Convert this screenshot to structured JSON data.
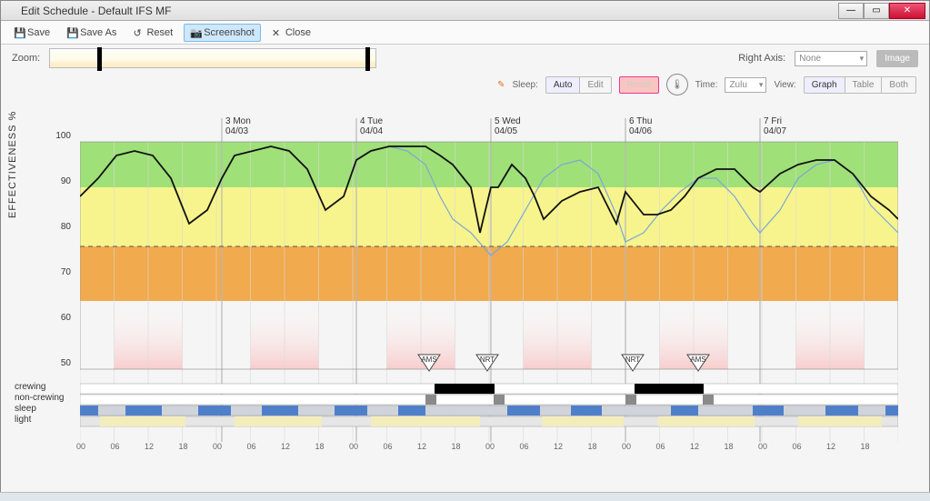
{
  "window": {
    "title": "Edit Schedule - Default IFS MF"
  },
  "toolbar": {
    "save": "Save",
    "saveas": "Save As",
    "reset": "Reset",
    "screenshot": "Screenshot",
    "close": "Close"
  },
  "controls": {
    "zoom_label": "Zoom:",
    "right_axis_label": "Right Axis:",
    "right_axis_value": "None",
    "image_btn": "Image",
    "sleep_label": "Sleep:",
    "auto": "Auto",
    "edit": "Edit",
    "reset": "Reset",
    "time_label": "Time:",
    "time_value": "Zulu",
    "view_label": "View:",
    "view_graph": "Graph",
    "view_table": "Table",
    "view_both": "Both"
  },
  "chart": {
    "y_label": "EFFECTIVENESS %",
    "y_ticks": [
      50,
      60,
      70,
      80,
      90,
      100
    ],
    "y_range": [
      50,
      100
    ],
    "bands": [
      {
        "from": 90,
        "to": 100,
        "color": "#8fdc63",
        "alpha": 0.85
      },
      {
        "from": 77,
        "to": 90,
        "color": "#f7f37a",
        "alpha": 0.85
      },
      {
        "from": 65,
        "to": 77,
        "color": "#f1a23c",
        "alpha": 0.9
      }
    ],
    "dash_line_y": 77,
    "low_fade_color": "#f8c8c8",
    "dates": [
      {
        "x": 156,
        "d1": "3 Mon",
        "d2": "04/03"
      },
      {
        "x": 304,
        "d1": "4 Tue",
        "d2": "04/04"
      },
      {
        "x": 452,
        "d1": "5 Wed",
        "d2": "04/05"
      },
      {
        "x": 600,
        "d1": "6 Thu",
        "d2": "04/06"
      },
      {
        "x": 748,
        "d1": "7 Fri",
        "d2": "04/07"
      }
    ],
    "airport_markers": [
      {
        "x": 384,
        "code": "AMS"
      },
      {
        "x": 448,
        "code": "NRT"
      },
      {
        "x": 608,
        "code": "NRT"
      },
      {
        "x": 680,
        "code": "AMS"
      }
    ],
    "x_hours": [
      "00",
      "06",
      "12",
      "18",
      "00",
      "06",
      "12",
      "18",
      "00",
      "06",
      "12",
      "18",
      "00",
      "06",
      "12",
      "18",
      "00",
      "06",
      "12",
      "18",
      "00",
      "06",
      "12",
      "18"
    ],
    "x_hour_spacing": 37.5,
    "row_labels": [
      "crewing",
      "non-crewing",
      "sleep",
      "light"
    ],
    "series": {
      "baseline": {
        "color": "#7aa7d6",
        "width": 1.2,
        "points": [
          [
            0,
            88
          ],
          [
            20,
            92
          ],
          [
            40,
            97
          ],
          [
            60,
            98
          ],
          [
            80,
            97
          ],
          [
            100,
            92
          ],
          [
            120,
            82
          ],
          [
            140,
            85
          ],
          [
            156,
            92
          ],
          [
            170,
            97
          ],
          [
            190,
            98
          ],
          [
            210,
            99
          ],
          [
            230,
            98
          ],
          [
            250,
            94
          ],
          [
            270,
            85
          ],
          [
            290,
            88
          ],
          [
            304,
            96
          ],
          [
            320,
            98
          ],
          [
            340,
            99
          ],
          [
            360,
            98
          ],
          [
            380,
            95
          ],
          [
            396,
            88
          ],
          [
            410,
            83
          ],
          [
            430,
            80
          ],
          [
            452,
            75
          ],
          [
            470,
            78
          ],
          [
            490,
            85
          ],
          [
            510,
            92
          ],
          [
            530,
            95
          ],
          [
            550,
            96
          ],
          [
            570,
            93
          ],
          [
            590,
            84
          ],
          [
            600,
            78
          ],
          [
            620,
            80
          ],
          [
            640,
            85
          ],
          [
            660,
            89
          ],
          [
            680,
            92
          ],
          [
            700,
            92
          ],
          [
            720,
            88
          ],
          [
            740,
            82
          ],
          [
            748,
            80
          ],
          [
            770,
            85
          ],
          [
            790,
            92
          ],
          [
            810,
            95
          ],
          [
            830,
            96
          ],
          [
            850,
            93
          ],
          [
            870,
            86
          ],
          [
            890,
            82
          ],
          [
            900,
            80
          ]
        ]
      },
      "actual": {
        "color": "#111",
        "width": 1.8,
        "points": [
          [
            0,
            88
          ],
          [
            20,
            92
          ],
          [
            40,
            97
          ],
          [
            60,
            98
          ],
          [
            80,
            97
          ],
          [
            100,
            92
          ],
          [
            120,
            82
          ],
          [
            140,
            85
          ],
          [
            156,
            92
          ],
          [
            170,
            97
          ],
          [
            190,
            98
          ],
          [
            210,
            99
          ],
          [
            230,
            98
          ],
          [
            250,
            94
          ],
          [
            270,
            85
          ],
          [
            290,
            88
          ],
          [
            304,
            96
          ],
          [
            320,
            98
          ],
          [
            340,
            99
          ],
          [
            360,
            99
          ],
          [
            380,
            99
          ],
          [
            396,
            97
          ],
          [
            410,
            95
          ],
          [
            430,
            90
          ],
          [
            440,
            80
          ],
          [
            452,
            90
          ],
          [
            460,
            90
          ],
          [
            475,
            95
          ],
          [
            490,
            92
          ],
          [
            500,
            88
          ],
          [
            510,
            83
          ],
          [
            530,
            87
          ],
          [
            550,
            89
          ],
          [
            570,
            90
          ],
          [
            590,
            82
          ],
          [
            600,
            89
          ],
          [
            620,
            84
          ],
          [
            635,
            84
          ],
          [
            650,
            85
          ],
          [
            665,
            88
          ],
          [
            680,
            92
          ],
          [
            700,
            94
          ],
          [
            720,
            94
          ],
          [
            740,
            90
          ],
          [
            748,
            89
          ],
          [
            770,
            93
          ],
          [
            790,
            95
          ],
          [
            810,
            96
          ],
          [
            830,
            96
          ],
          [
            850,
            93
          ],
          [
            870,
            88
          ],
          [
            890,
            85
          ],
          [
            900,
            83
          ]
        ]
      }
    },
    "crewing_bars": [
      {
        "x": 390,
        "w": 66
      },
      {
        "x": 610,
        "w": 76
      }
    ],
    "noncrew_bars": [
      {
        "x": 380,
        "w": 12
      },
      {
        "x": 455,
        "w": 12
      },
      {
        "x": 600,
        "w": 12
      },
      {
        "x": 685,
        "w": 12
      }
    ],
    "sleep_bars": [
      {
        "x": 0,
        "w": 20
      },
      {
        "x": 50,
        "w": 40
      },
      {
        "x": 130,
        "w": 36
      },
      {
        "x": 200,
        "w": 40
      },
      {
        "x": 280,
        "w": 36
      },
      {
        "x": 350,
        "w": 30
      },
      {
        "x": 470,
        "w": 36
      },
      {
        "x": 540,
        "w": 34
      },
      {
        "x": 650,
        "w": 30
      },
      {
        "x": 740,
        "w": 34
      },
      {
        "x": 820,
        "w": 36
      },
      {
        "x": 886,
        "w": 14
      }
    ],
    "light_bars": [
      {
        "x": 22,
        "w": 94
      },
      {
        "x": 170,
        "w": 96
      },
      {
        "x": 320,
        "w": 120
      },
      {
        "x": 508,
        "w": 90
      },
      {
        "x": 636,
        "w": 106
      },
      {
        "x": 790,
        "w": 92
      }
    ],
    "colors": {
      "grid": "#d9d9d9",
      "daygrid": "#b8b8b8",
      "crewing": "#000",
      "noncrew": "#8a8a8a",
      "sleep": "#4f7fc9",
      "sleep_off": "#d0d4da",
      "light": "#f3edbc",
      "light_off": "#e6e6e6"
    }
  }
}
